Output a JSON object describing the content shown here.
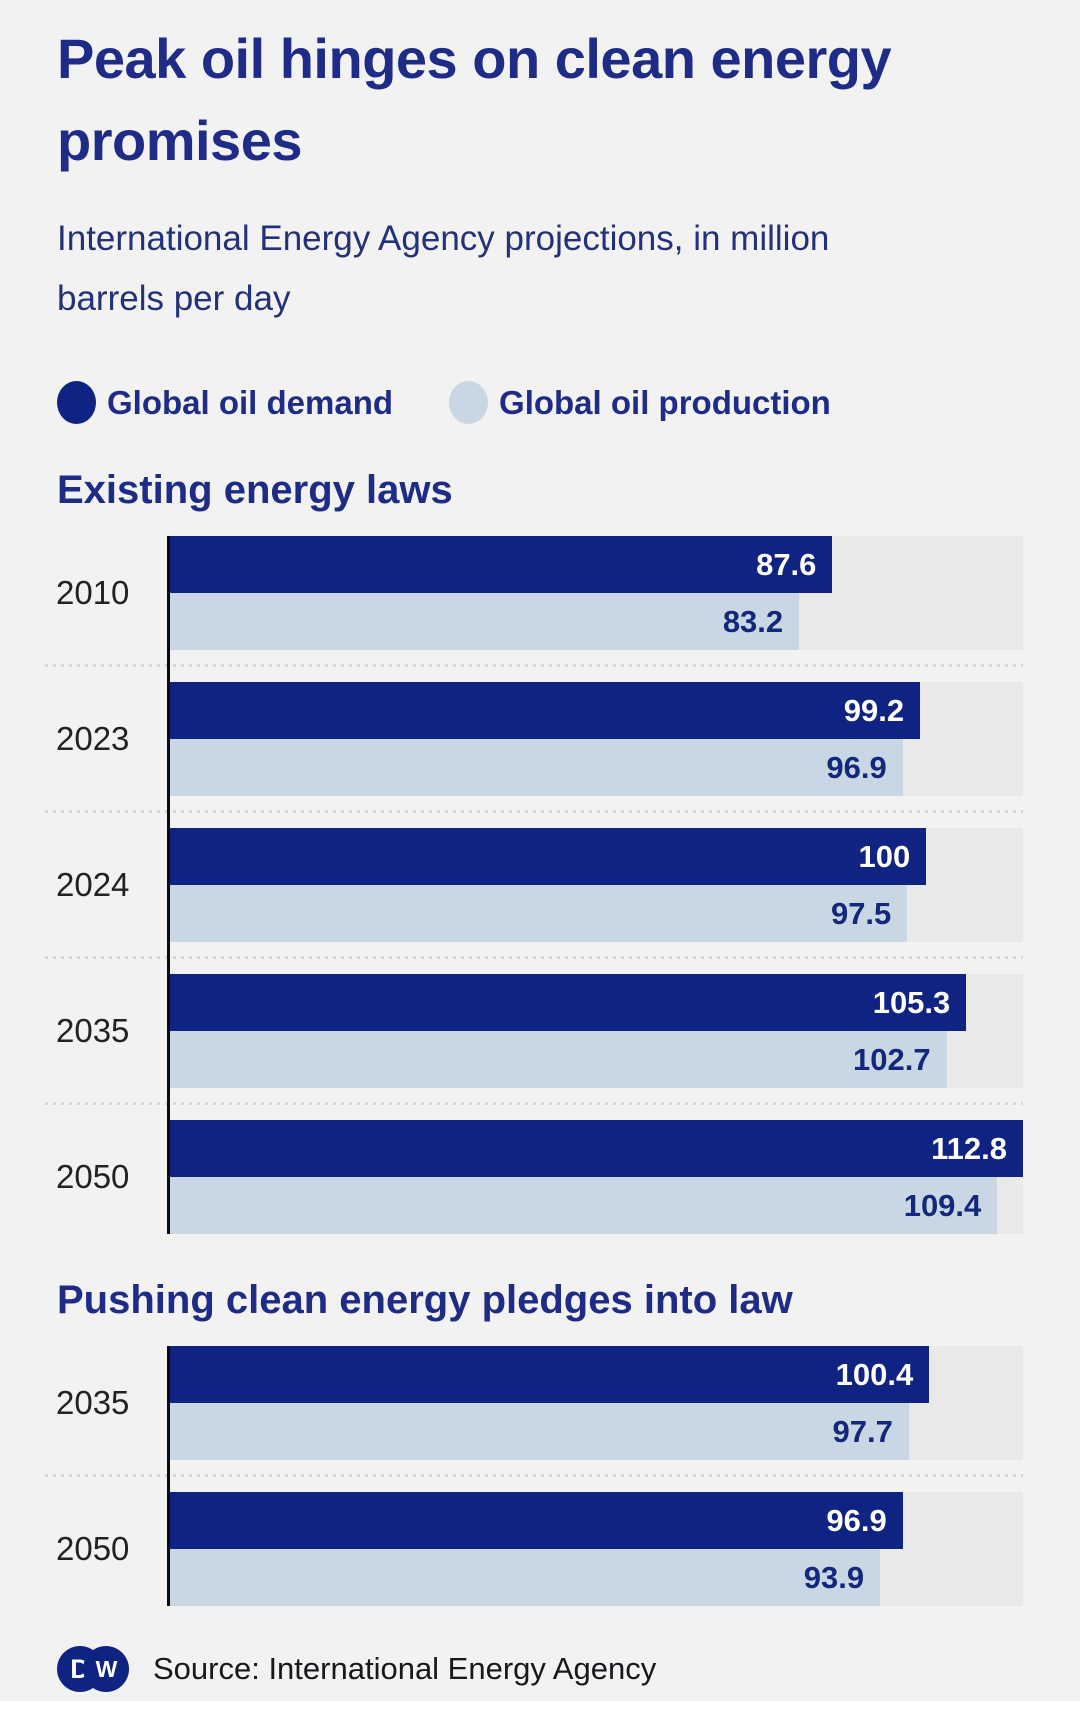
{
  "header": {
    "title": "Peak oil hinges on clean energy promises",
    "subtitle": "International Energy Agency projections, in million barrels per day"
  },
  "legend": [
    {
      "label": "Global oil demand",
      "color": "#0f2383"
    },
    {
      "label": "Global oil production",
      "color": "#c9d6e3"
    }
  ],
  "chart_data": [
    {
      "type": "bar",
      "orientation": "horizontal",
      "title": "Existing energy laws",
      "categories": [
        "2010",
        "2023",
        "2024",
        "2035",
        "2050"
      ],
      "series": [
        {
          "name": "Global oil demand",
          "values": [
            87.6,
            99.2,
            100,
            105.3,
            112.8
          ]
        },
        {
          "name": "Global oil production",
          "values": [
            83.2,
            96.9,
            97.5,
            102.7,
            109.4
          ]
        }
      ],
      "xlabel": "",
      "ylabel": "",
      "xlim": [
        0,
        112.8
      ],
      "grid": false,
      "legend_position": "top"
    },
    {
      "type": "bar",
      "orientation": "horizontal",
      "title": "Pushing clean energy pledges into law",
      "categories": [
        "2035",
        "2050"
      ],
      "series": [
        {
          "name": "Global oil demand",
          "values": [
            100.4,
            96.9
          ]
        },
        {
          "name": "Global oil production",
          "values": [
            97.7,
            93.9
          ]
        }
      ],
      "xlabel": "",
      "ylabel": "",
      "xlim": [
        0,
        112.8
      ],
      "grid": false,
      "legend_position": "top"
    }
  ],
  "footer": {
    "logo_letters": [
      "D",
      "W"
    ],
    "source": "Source: International Energy Agency"
  },
  "colors": {
    "background": "#f2f2f3",
    "bar_track": "#e9e9ea",
    "demand": "#0f2383",
    "production": "#c9d6e3",
    "heading": "#1e2b87"
  }
}
